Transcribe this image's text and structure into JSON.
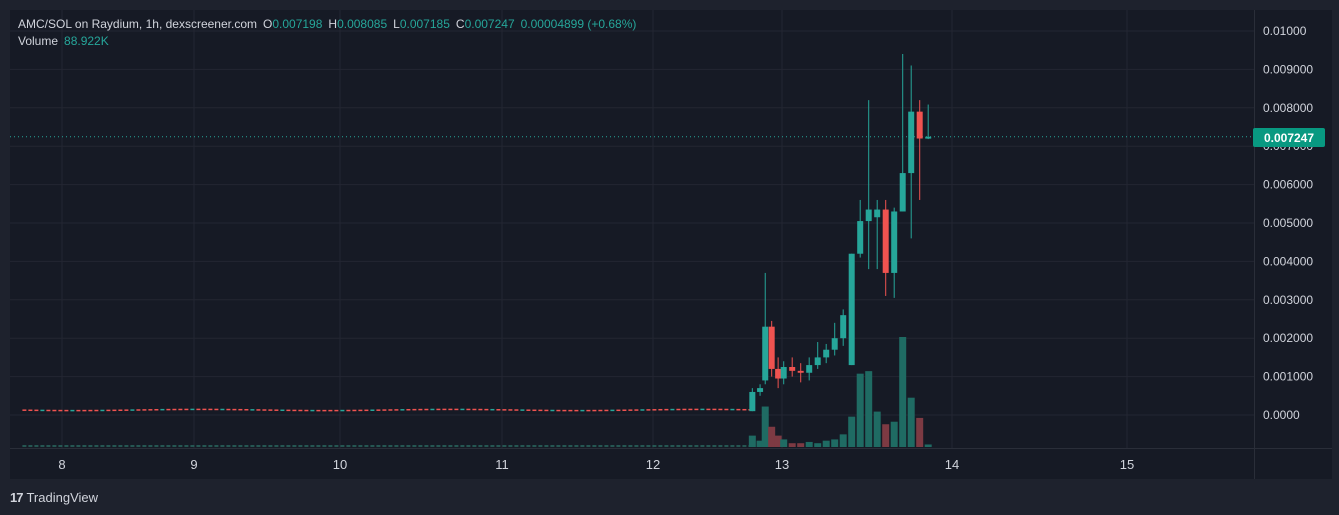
{
  "header": {
    "symbol": "AMC/SOL on Raydium, 1h, dexscreener.com",
    "open_label": "O",
    "open_value": "0.007198",
    "high_label": "H",
    "high_value": "0.008085",
    "low_label": "L",
    "low_value": "0.007185",
    "close_label": "C",
    "close_value": "0.007247",
    "change_value": "0.00004899 (+0.68%)",
    "volume_label": "Volume",
    "volume_value": "88.922K"
  },
  "last_price_label": "0.007247",
  "footer": {
    "brand": "TradingView",
    "logo": "17"
  },
  "colors": {
    "up": "#26a69a",
    "down": "#ef5350",
    "background": "#161a25",
    "grid": "#232632",
    "badge": "#089981"
  },
  "chart_data": {
    "type": "candlestick",
    "y_ticks": [
      "0.01000",
      "0.009000",
      "0.008000",
      "0.007000",
      "0.006000",
      "0.005000",
      "0.004000",
      "0.003000",
      "0.002000",
      "0.001000",
      "0.0000"
    ],
    "y_tick_values": [
      0.01,
      0.009,
      0.008,
      0.007,
      0.006,
      0.005,
      0.004,
      0.003,
      0.002,
      0.001,
      0
    ],
    "ylim": [
      -0.0008,
      0.0105
    ],
    "x_ticks": [
      "8",
      "9",
      "10",
      "11",
      "12",
      "13",
      "14",
      "15"
    ],
    "last_price": 0.007247,
    "flat_segment": {
      "from_day": 7.7,
      "to_day": 12.75,
      "price": 0.00013
    },
    "candles": [
      {
        "t": 12.77,
        "o": 0.0001,
        "h": 0.0007,
        "l": 0.0001,
        "c": 0.0006,
        "v": 0.9
      },
      {
        "t": 12.83,
        "o": 0.0006,
        "h": 0.0008,
        "l": 0.0005,
        "c": 0.0007,
        "v": 0.5
      },
      {
        "t": 12.87,
        "o": 0.0009,
        "h": 0.0037,
        "l": 0.0008,
        "c": 0.0023,
        "v": 3.2
      },
      {
        "t": 12.92,
        "o": 0.0023,
        "h": 0.00245,
        "l": 0.001,
        "c": 0.0012,
        "v": 1.6
      },
      {
        "t": 12.97,
        "o": 0.0012,
        "h": 0.0015,
        "l": 0.0007,
        "c": 0.00095,
        "v": 0.9
      },
      {
        "t": 13.01,
        "o": 0.00095,
        "h": 0.0014,
        "l": 0.0008,
        "c": 0.00125,
        "v": 0.6
      },
      {
        "t": 13.06,
        "o": 0.00125,
        "h": 0.0015,
        "l": 0.001,
        "c": 0.00115,
        "v": 0.3
      },
      {
        "t": 13.11,
        "o": 0.00115,
        "h": 0.00135,
        "l": 0.00085,
        "c": 0.0011,
        "v": 0.3
      },
      {
        "t": 13.16,
        "o": 0.0011,
        "h": 0.0015,
        "l": 0.0009,
        "c": 0.0013,
        "v": 0.4
      },
      {
        "t": 13.21,
        "o": 0.0013,
        "h": 0.0019,
        "l": 0.0012,
        "c": 0.0015,
        "v": 0.3
      },
      {
        "t": 13.26,
        "o": 0.0015,
        "h": 0.00185,
        "l": 0.00135,
        "c": 0.0017,
        "v": 0.5
      },
      {
        "t": 13.31,
        "o": 0.0017,
        "h": 0.0024,
        "l": 0.00155,
        "c": 0.002,
        "v": 0.6
      },
      {
        "t": 13.36,
        "o": 0.002,
        "h": 0.00275,
        "l": 0.0018,
        "c": 0.0026,
        "v": 1.0
      },
      {
        "t": 13.41,
        "o": 0.0013,
        "h": 0.0042,
        "l": 0.0013,
        "c": 0.0042,
        "v": 2.4
      },
      {
        "t": 13.46,
        "o": 0.0042,
        "h": 0.0056,
        "l": 0.0041,
        "c": 0.00505,
        "v": 5.8
      },
      {
        "t": 13.51,
        "o": 0.00505,
        "h": 0.0082,
        "l": 0.0038,
        "c": 0.00535,
        "v": 6.0
      },
      {
        "t": 13.56,
        "o": 0.00515,
        "h": 0.0056,
        "l": 0.0038,
        "c": 0.00535,
        "v": 2.8
      },
      {
        "t": 13.61,
        "o": 0.00535,
        "h": 0.0056,
        "l": 0.0031,
        "c": 0.0037,
        "v": 1.8
      },
      {
        "t": 13.66,
        "o": 0.0037,
        "h": 0.0054,
        "l": 0.00305,
        "c": 0.0053,
        "v": 2.0
      },
      {
        "t": 13.71,
        "o": 0.0053,
        "h": 0.0094,
        "l": 0.0053,
        "c": 0.0063,
        "v": 8.7
      },
      {
        "t": 13.76,
        "o": 0.0063,
        "h": 0.0091,
        "l": 0.0046,
        "c": 0.0079,
        "v": 3.9
      },
      {
        "t": 13.81,
        "o": 0.0079,
        "h": 0.0082,
        "l": 0.0056,
        "c": 0.0072,
        "v": 2.3
      },
      {
        "t": 13.86,
        "o": 0.007198,
        "h": 0.008085,
        "l": 0.007185,
        "c": 0.007247,
        "v": 0.2
      }
    ]
  }
}
